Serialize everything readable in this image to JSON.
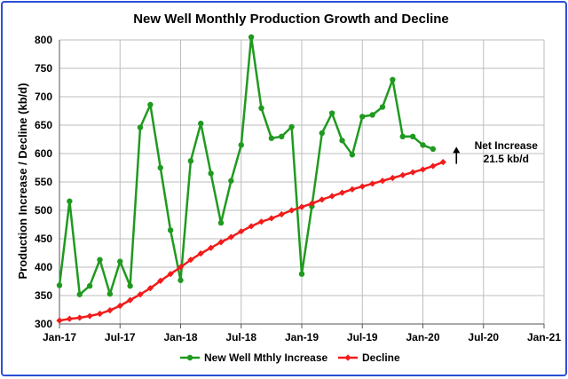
{
  "chart_data": {
    "type": "line",
    "title": "New Well Monthly Production Growth and Decline",
    "ylabel": "Production Increase / Decline (kb/d)",
    "xlabel": "",
    "ylim": [
      300,
      800
    ],
    "y_ticks": [
      300,
      350,
      400,
      450,
      500,
      550,
      600,
      650,
      700,
      750,
      800
    ],
    "x_start": "2017-01",
    "x_end": "2021-01",
    "x_tick_labels": [
      "Jan-17",
      "Jul-17",
      "Jan-18",
      "Jul-18",
      "Jan-19",
      "Jul-19",
      "Jan-20",
      "Jul-20",
      "Jan-21"
    ],
    "grid": true,
    "legend_position": "bottom",
    "series": [
      {
        "name": "New Well Mthly Increase",
        "color": "#1f9a1f",
        "marker": "circle",
        "x": [
          "2017-01",
          "2017-02",
          "2017-03",
          "2017-04",
          "2017-05",
          "2017-06",
          "2017-07",
          "2017-08",
          "2017-09",
          "2017-10",
          "2017-11",
          "2017-12",
          "2018-01",
          "2018-02",
          "2018-03",
          "2018-04",
          "2018-05",
          "2018-06",
          "2018-07",
          "2018-08",
          "2018-09",
          "2018-10",
          "2018-11",
          "2018-12",
          "2019-01",
          "2019-02",
          "2019-03",
          "2019-04",
          "2019-05",
          "2019-06",
          "2019-07",
          "2019-08",
          "2019-09",
          "2019-10",
          "2019-11",
          "2019-12",
          "2020-01",
          "2020-02"
        ],
        "values": [
          368,
          516,
          352,
          367,
          413,
          353,
          410,
          367,
          646,
          686,
          575,
          465,
          377,
          587,
          653,
          565,
          478,
          552,
          615,
          805,
          680,
          627,
          630,
          647,
          388,
          507,
          636,
          671,
          623,
          598,
          665,
          668,
          682,
          730,
          630,
          630,
          615,
          608
        ]
      },
      {
        "name": "Decline",
        "color": "#f21b1b",
        "marker": "diamond",
        "x": [
          "2017-01",
          "2017-02",
          "2017-03",
          "2017-04",
          "2017-05",
          "2017-06",
          "2017-07",
          "2017-08",
          "2017-09",
          "2017-10",
          "2017-11",
          "2017-12",
          "2018-01",
          "2018-02",
          "2018-03",
          "2018-04",
          "2018-05",
          "2018-06",
          "2018-07",
          "2018-08",
          "2018-09",
          "2018-10",
          "2018-11",
          "2018-12",
          "2019-01",
          "2019-02",
          "2019-03",
          "2019-04",
          "2019-05",
          "2019-06",
          "2019-07",
          "2019-08",
          "2019-09",
          "2019-10",
          "2019-11",
          "2019-12",
          "2020-01",
          "2020-02",
          "2020-03"
        ],
        "values": [
          306,
          309,
          311,
          314,
          318,
          324,
          332,
          342,
          352,
          363,
          376,
          388,
          400,
          413,
          424,
          434,
          444,
          453,
          463,
          472,
          480,
          486,
          493,
          500,
          506,
          512,
          519,
          525,
          531,
          537,
          542,
          547,
          552,
          557,
          562,
          567,
          572,
          578,
          585
        ]
      }
    ],
    "annotations": [
      {
        "text_lines": [
          "Net Increase",
          "21.5 kb/d"
        ],
        "arrow": "up"
      }
    ]
  }
}
